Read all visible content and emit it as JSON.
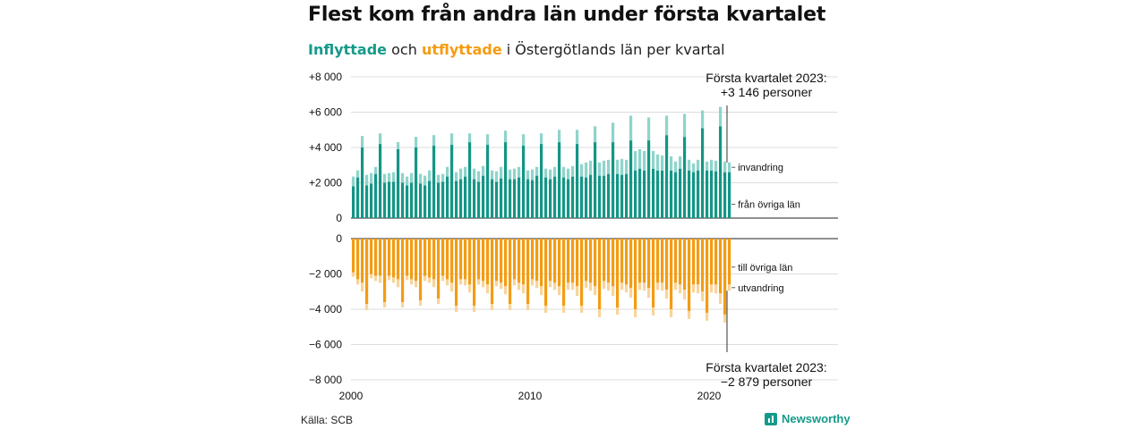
{
  "title": "Flest kom från andra län under första kvartalet",
  "subtitle": {
    "in_word": "Inflyttade",
    "and_word": " och ",
    "out_word": "utflyttade",
    "rest": " i Östergötlands län per kvartal"
  },
  "source": "Källa: SCB",
  "brand": "Newsworthy",
  "colors": {
    "inflow_dark": "#139686",
    "inflow_light": "#8fd4cb",
    "outflow_dark": "#f39c12",
    "outflow_light": "#f8d49a",
    "grid": "#dddddd",
    "zero_line": "#222222"
  },
  "chart_data": {
    "type": "bar",
    "stacked": true,
    "grid": true,
    "x_start": 2000,
    "x_end": 2023,
    "x_ticks": [
      2000,
      2010,
      2020
    ],
    "x_tick_labels": [
      "2000",
      "2010",
      "2020"
    ],
    "top": {
      "ylim": [
        0,
        8000
      ],
      "y_ticks": [
        0,
        2000,
        4000,
        6000,
        8000
      ],
      "y_tick_labels": [
        "0",
        "+2 000",
        "+4 000",
        "+6 000",
        "+8 000"
      ],
      "series_labels": [
        "invandring",
        "från övriga län"
      ],
      "annotation_line1": "Första kvartalet 2023:",
      "annotation_line2": "+3 146 personer",
      "base_from_other_counties": [
        1800,
        2300,
        4000,
        1850,
        1950,
        2500,
        4200,
        2000,
        2050,
        2050,
        3900,
        2000,
        1850,
        2000,
        4000,
        1950,
        1850,
        2100,
        4100,
        2000,
        2050,
        2350,
        4150,
        2100,
        2200,
        2350,
        4300,
        2200,
        2050,
        2400,
        4150,
        2200,
        2050,
        2250,
        4300,
        2200,
        2200,
        2300,
        4100,
        2200,
        2150,
        2400,
        4200,
        2300,
        2200,
        2350,
        4300,
        2300,
        2200,
        2350,
        4200,
        2350,
        2300,
        2450,
        4300,
        2400,
        2400,
        2500,
        4300,
        2500,
        2450,
        2500,
        4400,
        2700,
        2800,
        2700,
        4400,
        2800,
        2700,
        2700,
        4700,
        2700,
        2600,
        2800,
        4600,
        2700,
        2600,
        2700,
        5100,
        2700,
        2700,
        2650,
        5200,
        2600,
        2600
      ],
      "immigration": [
        550,
        400,
        650,
        600,
        600,
        400,
        600,
        500,
        500,
        550,
        400,
        550,
        500,
        550,
        600,
        550,
        550,
        600,
        600,
        450,
        450,
        550,
        650,
        500,
        600,
        550,
        500,
        600,
        600,
        550,
        600,
        500,
        600,
        650,
        650,
        550,
        600,
        600,
        650,
        500,
        600,
        500,
        600,
        500,
        550,
        550,
        700,
        600,
        600,
        600,
        800,
        700,
        850,
        800,
        900,
        750,
        850,
        800,
        1100,
        800,
        900,
        800,
        1400,
        1100,
        1100,
        1100,
        1300,
        1000,
        900,
        850,
        1100,
        800,
        600,
        700,
        1300,
        600,
        500,
        600,
        1000,
        500,
        600,
        600,
        1100,
        600,
        550
      ]
    },
    "bottom": {
      "ylim": [
        -8000,
        0
      ],
      "y_ticks": [
        0,
        -2000,
        -4000,
        -6000,
        -8000
      ],
      "y_tick_labels": [
        "0",
        "−2 000",
        "−4 000",
        "−6 000",
        "−8 000"
      ],
      "series_labels": [
        "till övriga län",
        "utvandring"
      ],
      "annotation_line1": "Första kvartalet 2023:",
      "annotation_line2": "−2 879 personer",
      "to_other_counties": [
        1900,
        2300,
        2500,
        3700,
        2000,
        2100,
        2100,
        3600,
        2100,
        2200,
        2300,
        3600,
        2100,
        2300,
        2400,
        3500,
        2100,
        2200,
        2300,
        3400,
        2100,
        2300,
        2500,
        3800,
        2300,
        2300,
        2600,
        3800,
        2300,
        2400,
        2600,
        3700,
        2400,
        2500,
        2700,
        3700,
        2300,
        2500,
        2600,
        3700,
        2300,
        2400,
        2700,
        3800,
        2400,
        2500,
        2700,
        3800,
        2500,
        2500,
        2700,
        3800,
        2400,
        2500,
        2700,
        4000,
        2400,
        2500,
        2700,
        3900,
        2500,
        2600,
        2800,
        4000,
        2500,
        2500,
        2800,
        3900,
        2500,
        2500,
        2900,
        4000,
        2500,
        2600,
        2900,
        4100,
        2600,
        2600,
        3000,
        4200,
        2600,
        2600,
        3100,
        4300,
        2600
      ],
      "emigration": [
        250,
        300,
        500,
        350,
        250,
        300,
        400,
        300,
        250,
        300,
        450,
        300,
        250,
        300,
        350,
        300,
        300,
        300,
        450,
        300,
        300,
        350,
        500,
        350,
        300,
        350,
        450,
        350,
        300,
        350,
        500,
        350,
        300,
        350,
        450,
        350,
        350,
        400,
        500,
        350,
        350,
        400,
        500,
        400,
        350,
        400,
        500,
        400,
        400,
        400,
        550,
        400,
        400,
        450,
        500,
        450,
        450,
        450,
        550,
        400,
        400,
        450,
        550,
        450,
        400,
        450,
        550,
        450,
        400,
        450,
        500,
        450,
        400,
        500,
        550,
        450,
        450,
        500,
        550,
        450,
        450,
        500,
        600,
        450,
        350
      ]
    }
  }
}
